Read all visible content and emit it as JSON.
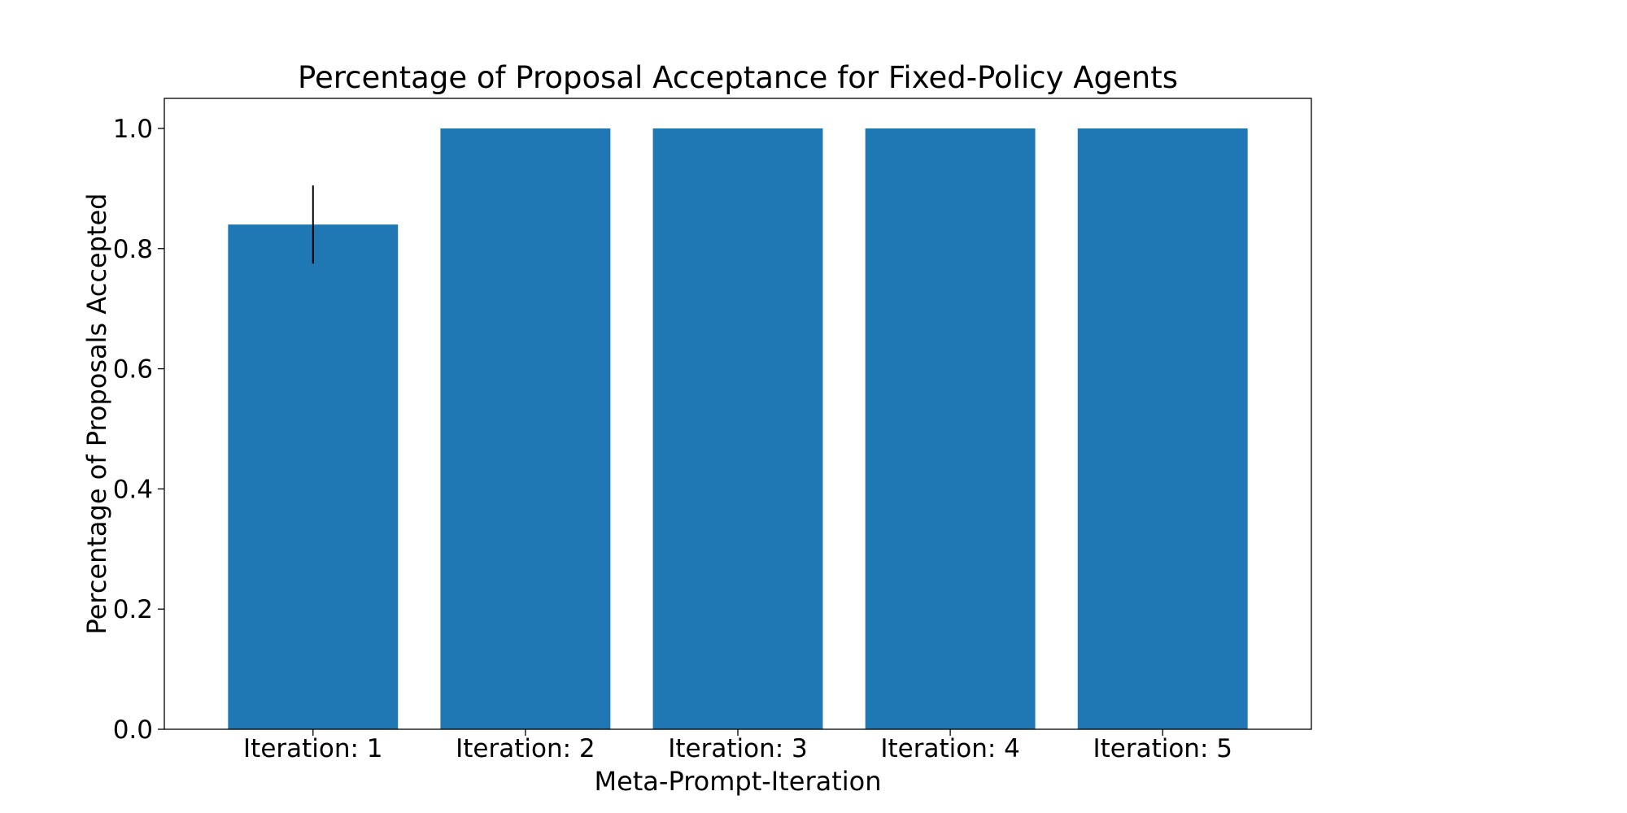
{
  "colors": {
    "bar": "#1f77b4",
    "axis": "#000000",
    "error_bar": "#000000",
    "background": "#ffffff"
  },
  "chart_data": {
    "type": "bar",
    "title": "Percentage of Proposal Acceptance for Fixed-Policy Agents",
    "xlabel": "Meta-Prompt-Iteration",
    "ylabel": "Percentage of Proposals Accepted",
    "categories": [
      "Iteration: 1",
      "Iteration: 2",
      "Iteration: 3",
      "Iteration: 4",
      "Iteration: 5"
    ],
    "values": [
      0.84,
      1.0,
      1.0,
      1.0,
      1.0
    ],
    "error": [
      0.065,
      0,
      0,
      0,
      0
    ],
    "ylim": [
      0,
      1.05
    ],
    "yticks": [
      0.0,
      0.2,
      0.4,
      0.6,
      0.8,
      1.0
    ],
    "ytick_labels": [
      "0.0",
      "0.2",
      "0.4",
      "0.6",
      "0.8",
      "1.0"
    ],
    "grid": false,
    "legend": "none"
  }
}
